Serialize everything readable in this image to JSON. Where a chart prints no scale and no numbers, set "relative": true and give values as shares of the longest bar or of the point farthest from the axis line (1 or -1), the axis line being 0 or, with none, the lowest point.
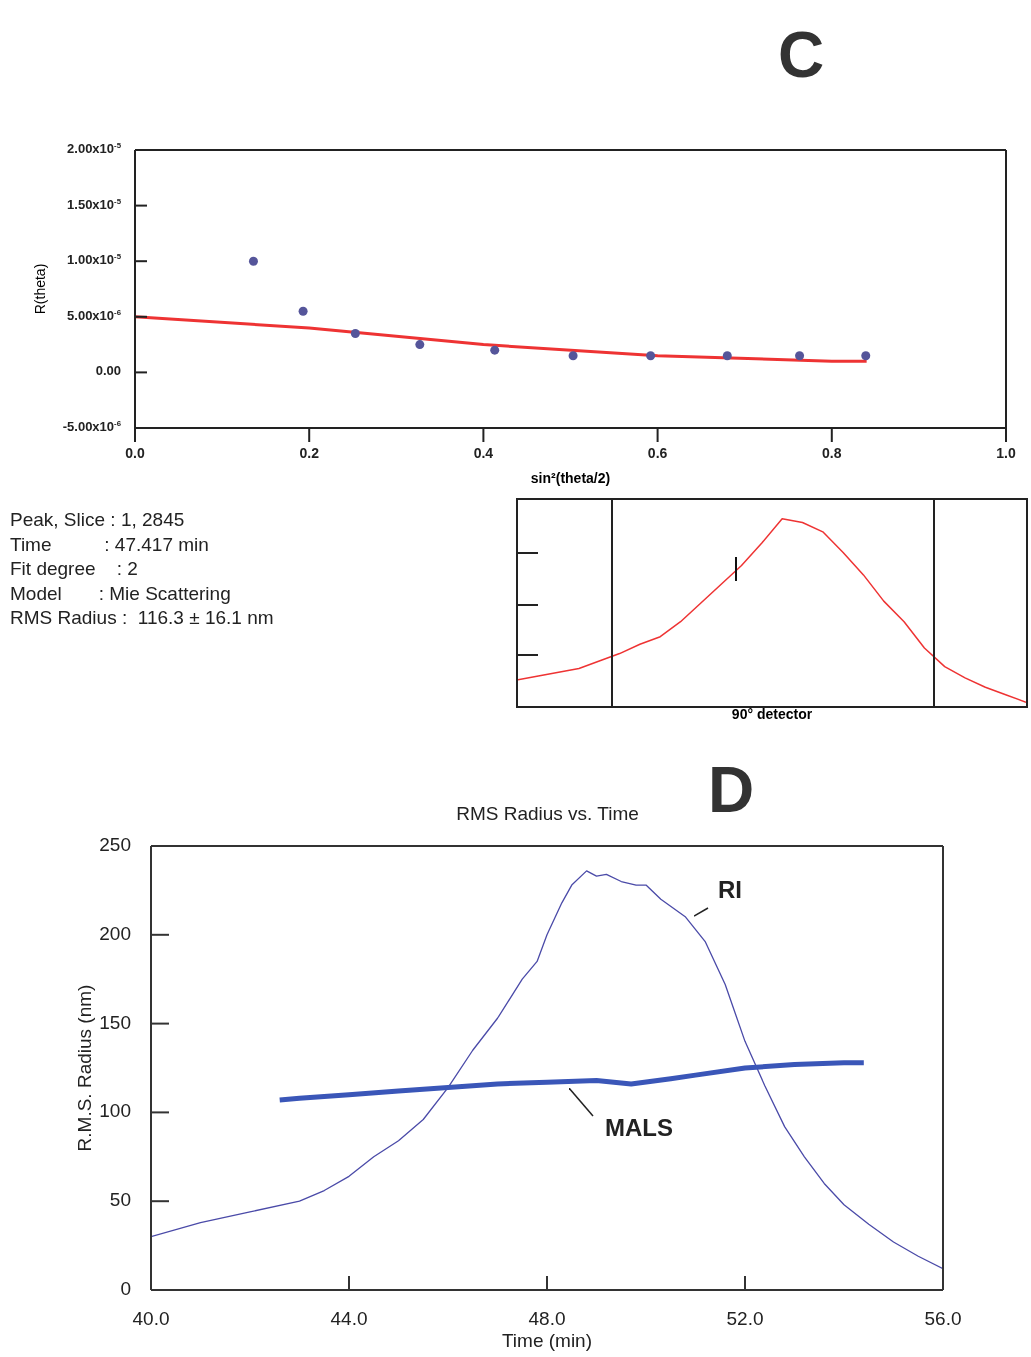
{
  "chart_data": [
    {
      "type": "scatter",
      "xlabel": "sin²(theta/2)",
      "ylabel": "R(theta)",
      "xlim": [
        0,
        1
      ],
      "ylim": [
        -5e-06,
        2e-05
      ],
      "xticks": [
        {
          "value": 0,
          "label": "0.0"
        },
        0.2,
        0.4,
        0.6,
        0.8,
        {
          "value": 1,
          "label": "1.0"
        }
      ],
      "yticks": [
        {
          "value": -5e-06,
          "label": "-5.00x10$^{-6}$"
        },
        {
          "value": 0,
          "label": "0.00"
        },
        {
          "value": 5e-06,
          "label": "5.00x10$^{-6}$"
        },
        {
          "value": 1e-05,
          "label": "1.00x10$^{-5}$"
        },
        {
          "value": 1.5e-05,
          "label": "1.50x10$^{-5}$"
        },
        {
          "value": 2e-05,
          "label": "2.00x10$^{-5}$"
        }
      ],
      "series": [
        {
          "type": "scatter",
          "marker": "circle",
          "color": "#55559a",
          "x": [
            0.136,
            0.193,
            0.253,
            0.327,
            0.413,
            0.503,
            0.592,
            0.68,
            0.763,
            0.839
          ],
          "values": [
            1e-05,
            5.5e-06,
            3.5e-06,
            2.5e-06,
            2e-06,
            1.5e-06,
            1.5e-06,
            1.5e-06,
            1.5e-06,
            1.5e-06
          ]
        },
        {
          "type": "line",
          "color": "#ee3333",
          "x": [
            0,
            0.2,
            0.4,
            0.6,
            0.8,
            0.84
          ],
          "values": [
            5e-06,
            4e-06,
            2.5e-06,
            1.5e-06,
            1e-06,
            1e-06
          ]
        }
      ],
      "annotations": [
        "C",
        "Peak, Slice : 1, 2845",
        "Time          : 47.417 min",
        "Fit degree    : 2",
        "Model       : Mie Scattering",
        "RMS Radius :  116.3 ± 16.1 nm"
      ]
    },
    {
      "type": "line",
      "relative": true,
      "xlabel": "90° detector",
      "categories": [
        null,
        null,
        null,
        null,
        null,
        null,
        null,
        null,
        null,
        null,
        null,
        null,
        null,
        null,
        null,
        null,
        null,
        null,
        null,
        null,
        null,
        null,
        null,
        null,
        null,
        null
      ],
      "series": [
        {
          "color": "#ee3333",
          "values": [
            0.14,
            0.16,
            0.18,
            0.2,
            0.24,
            0.28,
            0.33,
            0.37,
            0.45,
            0.55,
            0.65,
            0.75,
            0.87,
            1,
            0.98,
            0.93,
            0.82,
            0.7,
            0.56,
            0.45,
            0.31,
            0.21,
            0.15,
            0.1,
            0.06,
            0.02
          ]
        }
      ]
    },
    {
      "type": "line",
      "title": "RMS Radius vs. Time",
      "xlabel": "Time (min)",
      "ylabel": "R.M.S. Radius (nm)",
      "xlim": [
        40,
        56
      ],
      "ylim": [
        0,
        250
      ],
      "xticks": [
        {
          "value": 40,
          "label": "40.0"
        },
        {
          "value": 44,
          "label": "44.0"
        },
        {
          "value": 48,
          "label": "48.0"
        },
        {
          "value": 52,
          "label": "52.0"
        },
        {
          "value": 56,
          "label": "56.0"
        }
      ],
      "yticks": [
        0,
        50,
        100,
        150,
        200,
        250
      ],
      "series": [
        {
          "name": "RI",
          "color": "#4a4aa8",
          "x": [
            40,
            41,
            42,
            43,
            43.5,
            44,
            44.5,
            45,
            45.5,
            46,
            46.5,
            47,
            47.5,
            47.8,
            48,
            48.3,
            48.5,
            48.8,
            49,
            49.2,
            49.5,
            49.8,
            50,
            50.3,
            50.8,
            51.2,
            51.6,
            52,
            52.4,
            52.8,
            53.2,
            53.6,
            54,
            54.5,
            55,
            55.5,
            56
          ],
          "values": [
            30,
            38,
            44,
            50,
            56,
            64,
            75,
            84,
            96,
            114,
            135,
            153,
            175,
            185,
            200,
            218,
            228,
            236,
            233,
            234,
            230,
            228,
            228,
            220,
            210,
            196,
            172,
            140,
            115,
            92,
            75,
            60,
            48,
            37,
            27,
            19,
            12
          ]
        },
        {
          "name": "MALS",
          "color": "#3a56b8",
          "x": [
            42.6,
            43,
            44,
            45,
            46,
            47,
            48,
            49,
            49.7,
            50.5,
            51,
            52,
            53,
            54,
            54.4
          ],
          "values": [
            107,
            108,
            110,
            112,
            114,
            116,
            117,
            118,
            116,
            119,
            121,
            125,
            127,
            128,
            128
          ]
        }
      ],
      "annotations": [
        "D"
      ]
    }
  ]
}
